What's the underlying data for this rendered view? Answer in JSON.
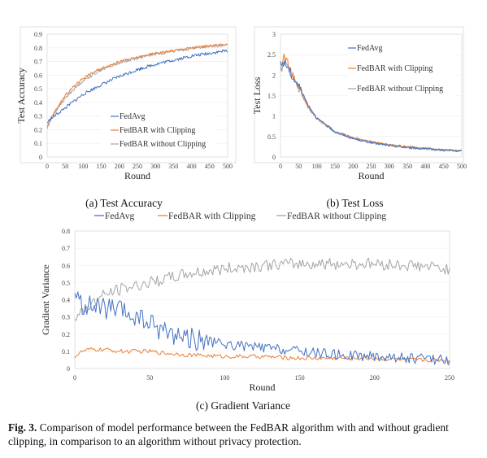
{
  "colors": {
    "fedavg": "#4472c4",
    "clip": "#ed7d31",
    "noclip": "#a5a5a5",
    "frame": "#d9d9d9",
    "grid": "#ebebeb"
  },
  "figure_caption": {
    "label": "Fig. 3.",
    "text": " Comparison of model performance between the FedBAR algorithm with and without gradient clipping, in comparison to an algorithm without privacy protection."
  },
  "chart_data": [
    {
      "id": "a",
      "type": "line",
      "caption": "(a)  Test Accuracy",
      "xlabel": "Round",
      "ylabel": "Test Accuracy",
      "xlim": [
        0,
        500
      ],
      "ylim": [
        0,
        0.9
      ],
      "xticks": [
        0,
        50,
        100,
        150,
        200,
        250,
        300,
        350,
        400,
        450,
        500
      ],
      "yticks": [
        0,
        0.1,
        0.2,
        0.3,
        0.4,
        0.5,
        0.6,
        0.7,
        0.8,
        0.9
      ],
      "ytick_labels": [
        "0",
        "0.1",
        "0.2",
        "0.3",
        "0.4",
        "0.5",
        "0.6",
        "0.7",
        "0.8",
        "0.9"
      ],
      "grid": true,
      "legend": "inside, lower-right",
      "x": [
        0,
        10,
        25,
        50,
        75,
        100,
        150,
        200,
        250,
        300,
        350,
        400,
        450,
        500
      ],
      "series": [
        {
          "name": "FedAvg",
          "color": "#4472c4",
          "values": [
            0.25,
            0.28,
            0.31,
            0.36,
            0.41,
            0.46,
            0.53,
            0.59,
            0.64,
            0.68,
            0.71,
            0.74,
            0.76,
            0.78
          ]
        },
        {
          "name": "FedBAR with Clipping",
          "color": "#ed7d31",
          "values": [
            0.22,
            0.28,
            0.35,
            0.45,
            0.52,
            0.58,
            0.65,
            0.7,
            0.73,
            0.76,
            0.78,
            0.8,
            0.815,
            0.825
          ]
        },
        {
          "name": "FedBAR without Clipping",
          "color": "#a5a5a5",
          "values": [
            0.21,
            0.27,
            0.34,
            0.43,
            0.5,
            0.56,
            0.64,
            0.69,
            0.725,
            0.755,
            0.775,
            0.795,
            0.81,
            0.82
          ]
        }
      ]
    },
    {
      "id": "b",
      "type": "line",
      "caption": "(b)  Test Loss",
      "xlabel": "Round",
      "ylabel": "Test Loss",
      "xlim": [
        0,
        500
      ],
      "ylim": [
        0,
        3
      ],
      "xticks": [
        0,
        50,
        100,
        150,
        200,
        250,
        300,
        350,
        400,
        450,
        500
      ],
      "yticks": [
        0,
        0.5,
        1,
        1.5,
        2,
        2.5,
        3
      ],
      "ytick_labels": [
        "0",
        "0.5",
        "1",
        "1.5",
        "2",
        "2.5",
        "3"
      ],
      "grid": true,
      "legend": "inside, top-right",
      "x": [
        0,
        10,
        20,
        30,
        50,
        75,
        100,
        150,
        200,
        250,
        300,
        350,
        400,
        450,
        500
      ],
      "series": [
        {
          "name": "FedAvg",
          "color": "#4472c4",
          "values": [
            2.25,
            2.3,
            2.2,
            2.0,
            1.75,
            1.3,
            0.95,
            0.62,
            0.45,
            0.35,
            0.28,
            0.23,
            0.2,
            0.17,
            0.14
          ]
        },
        {
          "name": "FedBAR with Clipping",
          "color": "#ed7d31",
          "values": [
            2.1,
            2.45,
            2.3,
            2.05,
            1.7,
            1.25,
            0.95,
            0.63,
            0.47,
            0.37,
            0.3,
            0.25,
            0.21,
            0.18,
            0.15
          ]
        },
        {
          "name": "FedBAR without Clipping",
          "color": "#a5a5a5",
          "values": [
            2.05,
            2.35,
            2.25,
            2.0,
            1.68,
            1.22,
            0.93,
            0.61,
            0.46,
            0.36,
            0.29,
            0.24,
            0.2,
            0.17,
            0.15
          ]
        }
      ]
    },
    {
      "id": "c",
      "type": "line",
      "caption": "(c)  Gradient Variance",
      "xlabel": "Round",
      "ylabel": "Gradient Variance",
      "xlim": [
        0,
        250
      ],
      "ylim": [
        0,
        0.8
      ],
      "xticks": [
        0,
        50,
        100,
        150,
        200,
        250
      ],
      "yticks": [
        0,
        0.1,
        0.2,
        0.3,
        0.4,
        0.5,
        0.6,
        0.7,
        0.8
      ],
      "ytick_labels": [
        "0",
        "0.1",
        "0.2",
        "0.3",
        "0.4",
        "0.5",
        "0.6",
        "0.7",
        "0.8"
      ],
      "grid": true,
      "legend": "top, outside",
      "x": [
        0,
        5,
        10,
        20,
        30,
        40,
        50,
        60,
        75,
        100,
        125,
        150,
        175,
        200,
        225,
        250
      ],
      "series": [
        {
          "name": "FedAvg",
          "color": "#4472c4",
          "values": [
            0.42,
            0.37,
            0.36,
            0.35,
            0.33,
            0.3,
            0.26,
            0.22,
            0.18,
            0.14,
            0.12,
            0.1,
            0.08,
            0.07,
            0.06,
            0.05
          ]
        },
        {
          "name": "FedBAR with Clipping",
          "color": "#ed7d31",
          "values": [
            0.07,
            0.1,
            0.11,
            0.11,
            0.1,
            0.1,
            0.1,
            0.09,
            0.08,
            0.07,
            0.07,
            0.06,
            0.06,
            0.06,
            0.05,
            0.05
          ]
        },
        {
          "name": "FedBAR without Clipping",
          "color": "#a5a5a5",
          "values": [
            0.28,
            0.33,
            0.37,
            0.43,
            0.46,
            0.48,
            0.5,
            0.52,
            0.55,
            0.58,
            0.6,
            0.61,
            0.61,
            0.61,
            0.6,
            0.58
          ]
        }
      ]
    }
  ]
}
